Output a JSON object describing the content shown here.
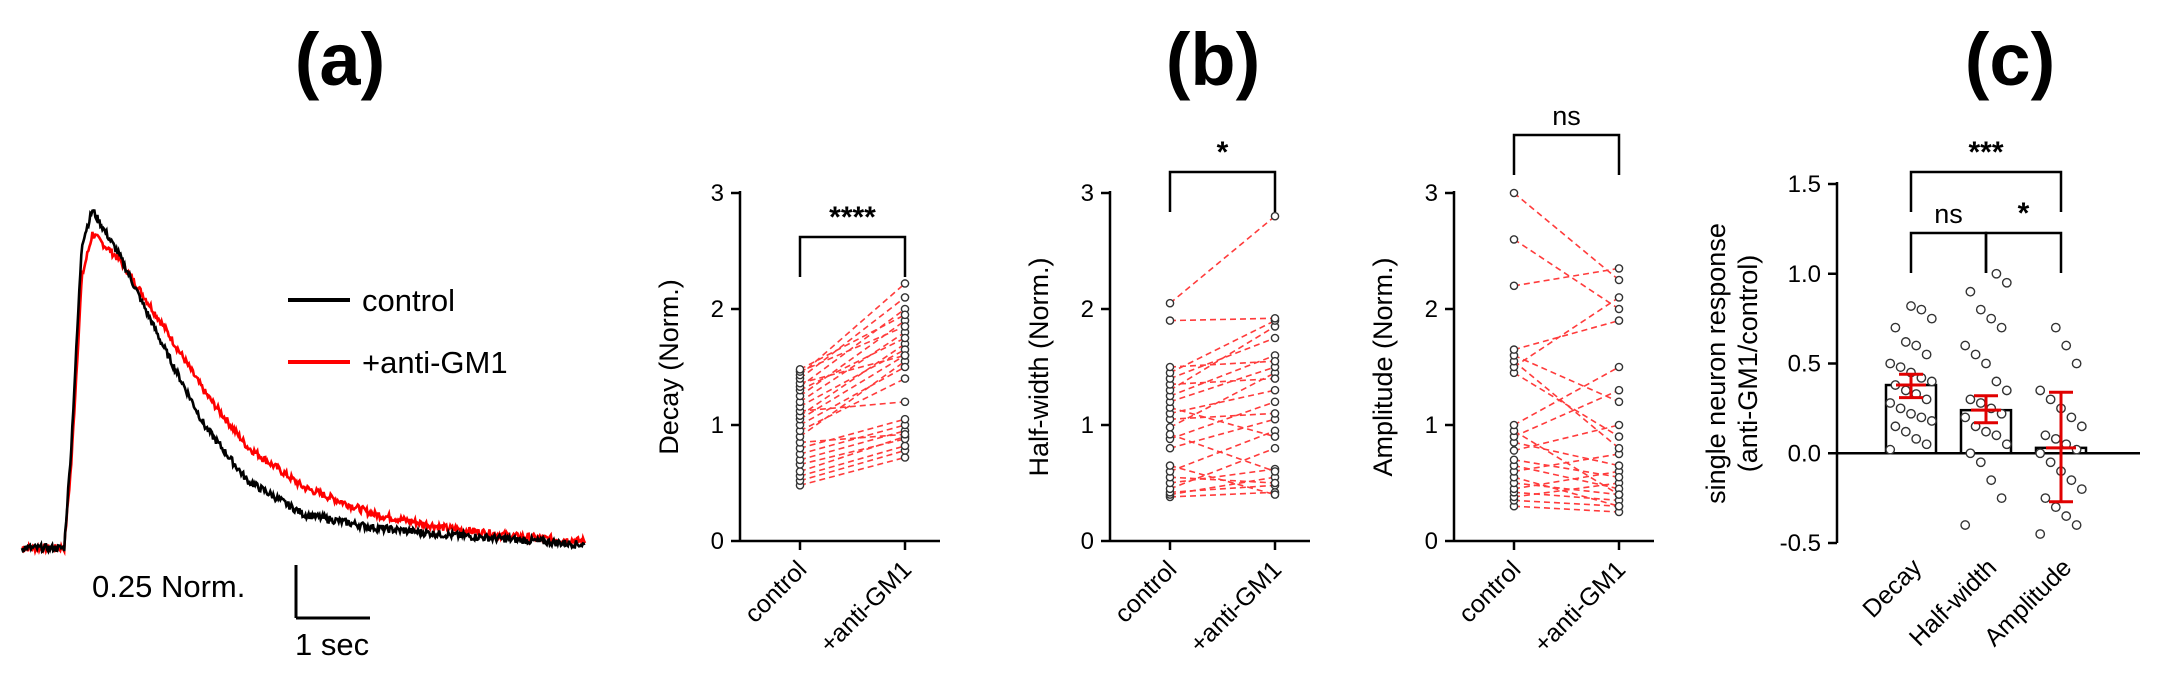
{
  "panels": [
    "(a)",
    "(b)",
    "(c)"
  ],
  "colors": {
    "control": "#000000",
    "anti": "#ff0000",
    "pair_line": "#ff3b3b"
  },
  "chart_data": [
    {
      "type": "line",
      "panel": "(a)",
      "legend": [
        "control",
        "+anti-GM1"
      ],
      "legend_position": "right",
      "scalebar": {
        "y_value": 0.25,
        "y_label": "0.25 Norm.",
        "x_value": 1,
        "x_label": "1 sec"
      },
      "x": [
        0.0,
        0.6,
        0.7,
        0.85,
        1.0,
        1.4,
        2.0,
        2.6,
        3.2,
        4.0,
        5.0,
        6.0,
        7.0,
        8.0
      ],
      "series": [
        {
          "name": "control",
          "values": [
            0.0,
            0.0,
            0.3,
            0.9,
            1.0,
            0.86,
            0.6,
            0.36,
            0.2,
            0.1,
            0.06,
            0.04,
            0.025,
            0.01
          ]
        },
        {
          "name": "+anti-GM1",
          "values": [
            0.0,
            0.0,
            0.25,
            0.8,
            0.93,
            0.85,
            0.66,
            0.46,
            0.3,
            0.18,
            0.1,
            0.06,
            0.035,
            0.02
          ]
        }
      ]
    },
    {
      "type": "scatter",
      "panel": "(b)",
      "ylabel": "Decay (Norm.)",
      "categories": [
        "control",
        "+anti-GM1"
      ],
      "ylim": [
        0,
        3
      ],
      "yticks": [
        "0",
        "1",
        "2",
        "3"
      ],
      "significance": "****",
      "pairs": [
        [
          0.48,
          0.72
        ],
        [
          0.52,
          0.78
        ],
        [
          0.56,
          0.82
        ],
        [
          0.6,
          0.9
        ],
        [
          0.66,
          0.88
        ],
        [
          0.7,
          0.95
        ],
        [
          0.75,
          1.0
        ],
        [
          0.8,
          1.05
        ],
        [
          0.85,
          0.92
        ],
        [
          0.9,
          1.55
        ],
        [
          0.95,
          1.4
        ],
        [
          1.0,
          1.5
        ],
        [
          1.05,
          1.6
        ],
        [
          1.08,
          1.7
        ],
        [
          1.12,
          1.2
        ],
        [
          1.16,
          1.65
        ],
        [
          1.2,
          1.8
        ],
        [
          1.25,
          1.9
        ],
        [
          1.3,
          1.75
        ],
        [
          1.33,
          2.0
        ],
        [
          1.36,
          1.6
        ],
        [
          1.4,
          2.1
        ],
        [
          1.43,
          2.22
        ],
        [
          1.46,
          1.85
        ],
        [
          1.48,
          1.95
        ]
      ]
    },
    {
      "type": "scatter",
      "panel": "(b)",
      "ylabel": "Half-width (Norm.)",
      "categories": [
        "control",
        "+anti-GM1"
      ],
      "ylim": [
        0,
        3
      ],
      "yticks": [
        "0",
        "1",
        "2",
        "3"
      ],
      "significance": "*",
      "pairs": [
        [
          0.38,
          0.42
        ],
        [
          0.4,
          0.55
        ],
        [
          0.42,
          0.48
        ],
        [
          0.45,
          0.8
        ],
        [
          0.5,
          0.62
        ],
        [
          0.55,
          0.5
        ],
        [
          0.6,
          0.95
        ],
        [
          0.65,
          0.4
        ],
        [
          0.8,
          1.05
        ],
        [
          0.88,
          1.2
        ],
        [
          0.92,
          0.6
        ],
        [
          0.98,
          1.45
        ],
        [
          1.05,
          1.1
        ],
        [
          1.1,
          1.3
        ],
        [
          1.15,
          0.9
        ],
        [
          1.2,
          1.5
        ],
        [
          1.25,
          1.6
        ],
        [
          1.3,
          1.85
        ],
        [
          1.35,
          1.4
        ],
        [
          1.4,
          1.75
        ],
        [
          1.45,
          1.9
        ],
        [
          1.5,
          1.55
        ],
        [
          1.9,
          1.92
        ],
        [
          2.05,
          2.8
        ]
      ]
    },
    {
      "type": "scatter",
      "panel": "(b)",
      "ylabel": "Amplitude (Norm.)",
      "categories": [
        "control",
        "+anti-GM1"
      ],
      "ylim": [
        0,
        3
      ],
      "yticks": [
        "0",
        "1",
        "2",
        "3"
      ],
      "significance": "ns",
      "pairs": [
        [
          0.3,
          0.25
        ],
        [
          0.35,
          0.3
        ],
        [
          0.38,
          0.5
        ],
        [
          0.42,
          0.35
        ],
        [
          0.45,
          0.6
        ],
        [
          0.5,
          0.4
        ],
        [
          0.55,
          0.3
        ],
        [
          0.6,
          0.75
        ],
        [
          0.65,
          0.45
        ],
        [
          0.7,
          0.55
        ],
        [
          0.78,
          1.0
        ],
        [
          0.85,
          0.65
        ],
        [
          0.9,
          1.3
        ],
        [
          0.95,
          0.4
        ],
        [
          1.0,
          1.5
        ],
        [
          1.45,
          0.9
        ],
        [
          1.5,
          2.1
        ],
        [
          1.55,
          0.8
        ],
        [
          1.6,
          1.2
        ],
        [
          1.65,
          1.9
        ],
        [
          2.2,
          2.35
        ],
        [
          2.6,
          2.0
        ],
        [
          3.0,
          2.25
        ]
      ]
    },
    {
      "type": "bar",
      "panel": "(c)",
      "ylabel": "single neuron response",
      "ylabel2": "(anti-GM1/control)",
      "categories": [
        "Decay",
        "Half-width",
        "Amplitude"
      ],
      "values": [
        0.38,
        0.24,
        0.03
      ],
      "errors": [
        [
          0.31,
          0.44
        ],
        [
          0.17,
          0.32
        ],
        [
          -0.27,
          0.34
        ]
      ],
      "ylim": [
        -0.5,
        1.5
      ],
      "yticks": [
        "-0.5",
        "0.0",
        "0.5",
        "1.0",
        "1.5"
      ],
      "comparisons": [
        {
          "pair": [
            0,
            1
          ],
          "label": "ns"
        },
        {
          "pair": [
            1,
            2
          ],
          "label": "*"
        },
        {
          "pair": [
            0,
            2
          ],
          "label": "***"
        }
      ],
      "points": [
        [
          0.02,
          0.05,
          0.08,
          0.12,
          0.15,
          0.18,
          0.2,
          0.22,
          0.25,
          0.28,
          0.3,
          0.33,
          0.35,
          0.38,
          0.4,
          0.42,
          0.45,
          0.48,
          0.5,
          0.55,
          0.6,
          0.62,
          0.7,
          0.75,
          0.8,
          0.82
        ],
        [
          -0.4,
          -0.25,
          -0.15,
          -0.05,
          0.0,
          0.05,
          0.1,
          0.12,
          0.15,
          0.2,
          0.22,
          0.25,
          0.28,
          0.3,
          0.35,
          0.4,
          0.5,
          0.55,
          0.6,
          0.7,
          0.75,
          0.8,
          0.9,
          0.95,
          1.0
        ],
        [
          -0.45,
          -0.4,
          -0.35,
          -0.3,
          -0.25,
          -0.2,
          -0.15,
          -0.1,
          -0.05,
          0.0,
          0.02,
          0.05,
          0.08,
          0.1,
          0.15,
          0.2,
          0.25,
          0.3,
          0.35,
          0.5,
          0.6,
          0.7
        ]
      ]
    }
  ]
}
